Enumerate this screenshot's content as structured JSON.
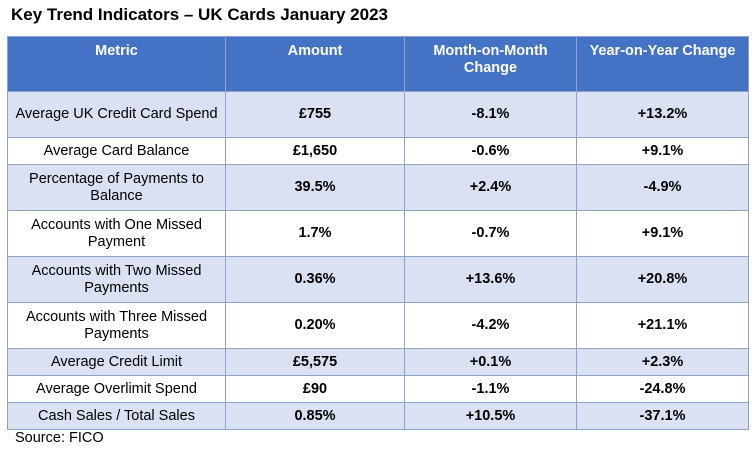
{
  "title": "Key Trend Indicators – UK Cards January 2023",
  "source": "Source: FICO",
  "chart_data": {
    "type": "table",
    "columns": [
      "Metric",
      "Amount",
      "Month-on-Month Change",
      "Year-on-Year Change"
    ],
    "rows": [
      {
        "metric": "Average UK Credit Card Spend",
        "amount": "£755",
        "mom": "-8.1%",
        "yoy": "+13.2%"
      },
      {
        "metric": "Average Card Balance",
        "amount": "£1,650",
        "mom": "-0.6%",
        "yoy": "+9.1%"
      },
      {
        "metric": "Percentage of Payments to Balance",
        "amount": "39.5%",
        "mom": "+2.4%",
        "yoy": "-4.9%"
      },
      {
        "metric": "Accounts with One Missed Payment",
        "amount": "1.7%",
        "mom": "-0.7%",
        "yoy": "+9.1%"
      },
      {
        "metric": "Accounts with Two Missed Payments",
        "amount": "0.36%",
        "mom": "+13.6%",
        "yoy": "+20.8%"
      },
      {
        "metric": "Accounts with Three Missed Payments",
        "amount": "0.20%",
        "mom": "-4.2%",
        "yoy": "+21.1%"
      },
      {
        "metric": "Average Credit Limit",
        "amount": "£5,575",
        "mom": "+0.1%",
        "yoy": "+2.3%"
      },
      {
        "metric": "Average Overlimit Spend",
        "amount": "£90",
        "mom": "-1.1%",
        "yoy": "-24.8%"
      },
      {
        "metric": "Cash Sales / Total Sales",
        "amount": "0.85%",
        "mom": "+10.5%",
        "yoy": "-37.1%"
      }
    ]
  }
}
